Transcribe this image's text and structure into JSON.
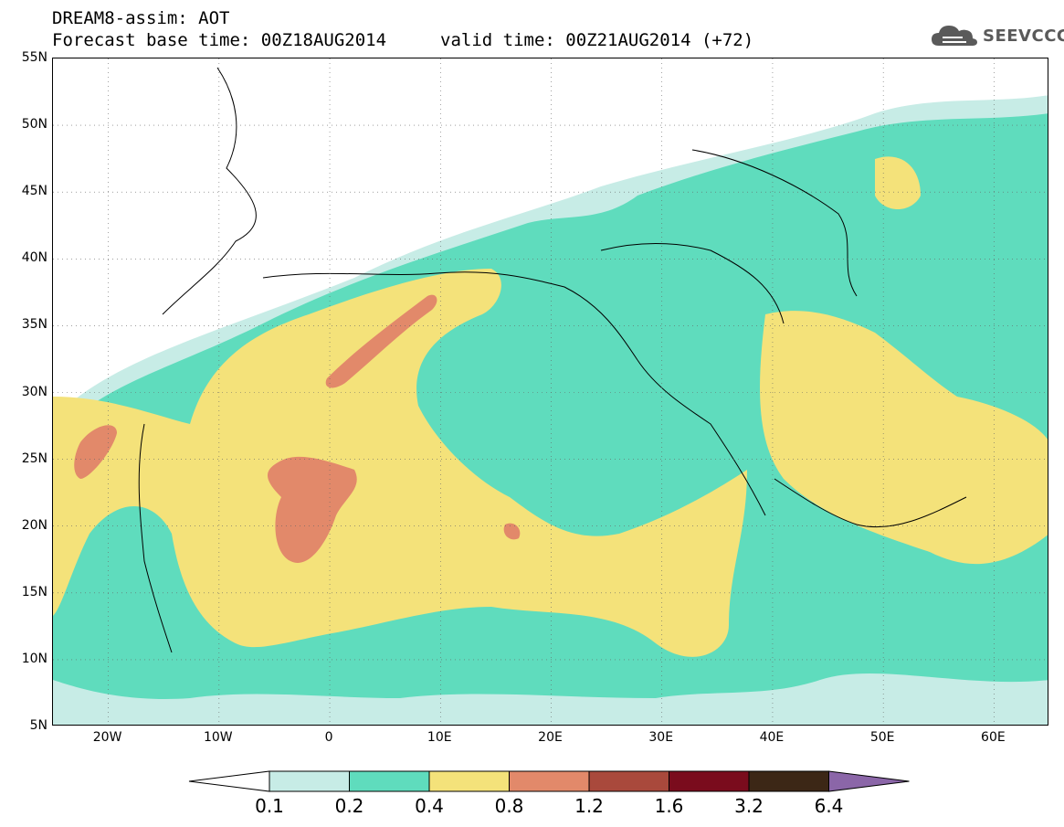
{
  "header": {
    "title": "DREAM8-assim: AOT",
    "base_time": "Forecast base time: 00Z18AUG2014",
    "valid_time": "valid time: 00Z21AUG2014 (+72)"
  },
  "logo": {
    "text": "SEEVCCC",
    "icon": "cloud-icon"
  },
  "map": {
    "lat_labels": [
      "55N",
      "50N",
      "45N",
      "40N",
      "35N",
      "30N",
      "25N",
      "20N",
      "15N",
      "10N",
      "5N"
    ],
    "lon_labels": [
      "20W",
      "10W",
      "0",
      "10E",
      "20E",
      "30E",
      "40E",
      "50E",
      "60E"
    ],
    "lat_range": [
      5,
      55
    ],
    "lon_range": [
      -25,
      65
    ]
  },
  "legend": {
    "labels": [
      "0.1",
      "0.2",
      "0.4",
      "0.8",
      "1.2",
      "1.6",
      "3.2",
      "6.4"
    ],
    "colors": [
      "#ffffff",
      "#c7ece6",
      "#5fdcbd",
      "#f4e27a",
      "#e2896a",
      "#a9493c",
      "#7a0c1d",
      "#3c2716",
      "#8b66a8"
    ]
  },
  "palette": {
    "pale": "#c7ece6",
    "teal": "#5fdcbd",
    "yellow": "#f4e27a",
    "orange": "#e2896a"
  }
}
